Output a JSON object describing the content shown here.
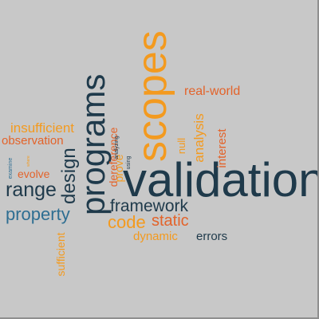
{
  "colors": {
    "dark": "#1f3a4b",
    "orange": "#f39a1f",
    "red_orange": "#e3632a",
    "blue": "#2e6e92",
    "background": "#c8c8c8"
  },
  "words": {
    "validation": "validation",
    "scopes": "scopes",
    "programs": "programs",
    "design": "design",
    "range": "range",
    "property": "property",
    "framework": "framework",
    "code": "code",
    "static": "static",
    "dynamic": "dynamic",
    "errors": "errors",
    "real_world": "real-world",
    "analysis": "analysis",
    "interest": "interest",
    "null": "null",
    "insufficient": "insufficient",
    "observation": "observation",
    "evolve": "evolve",
    "examine": "examine",
    "sufficient": "sufficient",
    "dereference": "dereference",
    "prove": "prove",
    "analyzing": "analyzing",
    "using": "using",
    "tiny": "where"
  }
}
